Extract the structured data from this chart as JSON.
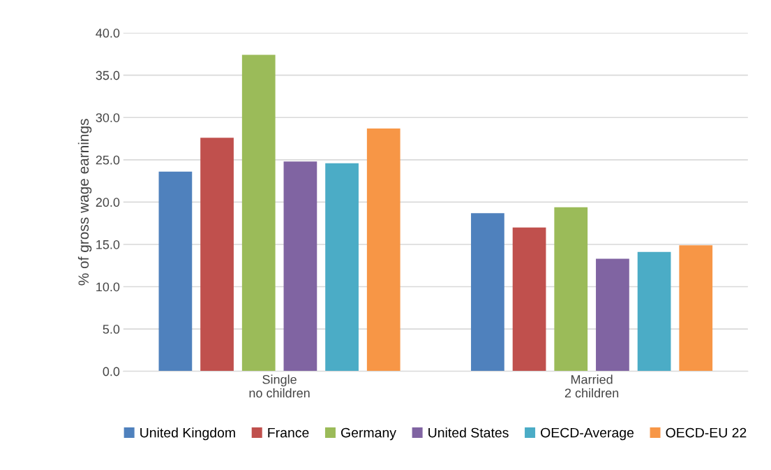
{
  "chart_data": {
    "type": "bar",
    "ylabel": "% of gross wage earnings",
    "categories": [
      "Single\nno children",
      "Married\n2 children"
    ],
    "series": [
      {
        "name": "United Kingdom",
        "color": "#4f81bd",
        "values": [
          23.6,
          18.7
        ]
      },
      {
        "name": "France",
        "color": "#c0504d",
        "values": [
          27.6,
          17.0
        ]
      },
      {
        "name": "Germany",
        "color": "#9bbb59",
        "values": [
          37.4,
          19.4
        ]
      },
      {
        "name": "United States",
        "color": "#8064a2",
        "values": [
          24.8,
          13.3
        ]
      },
      {
        "name": "OECD-Average",
        "color": "#4bacc6",
        "values": [
          24.6,
          14.1
        ]
      },
      {
        "name": "OECD-EU 22",
        "color": "#f79646",
        "values": [
          28.7,
          14.9
        ]
      }
    ],
    "ylim": [
      0,
      40
    ],
    "yticks": [
      {
        "value": 0,
        "label": "0.0"
      },
      {
        "value": 5,
        "label": "5.0"
      },
      {
        "value": 10,
        "label": "10.0"
      },
      {
        "value": 15,
        "label": "15.0"
      },
      {
        "value": 20,
        "label": "20.0"
      },
      {
        "value": 25,
        "label": "25.0"
      },
      {
        "value": 30,
        "label": "30.0"
      },
      {
        "value": 35,
        "label": "35.0"
      },
      {
        "value": 40,
        "label": "40.0"
      }
    ],
    "grid": "y",
    "legend": "bottom"
  }
}
